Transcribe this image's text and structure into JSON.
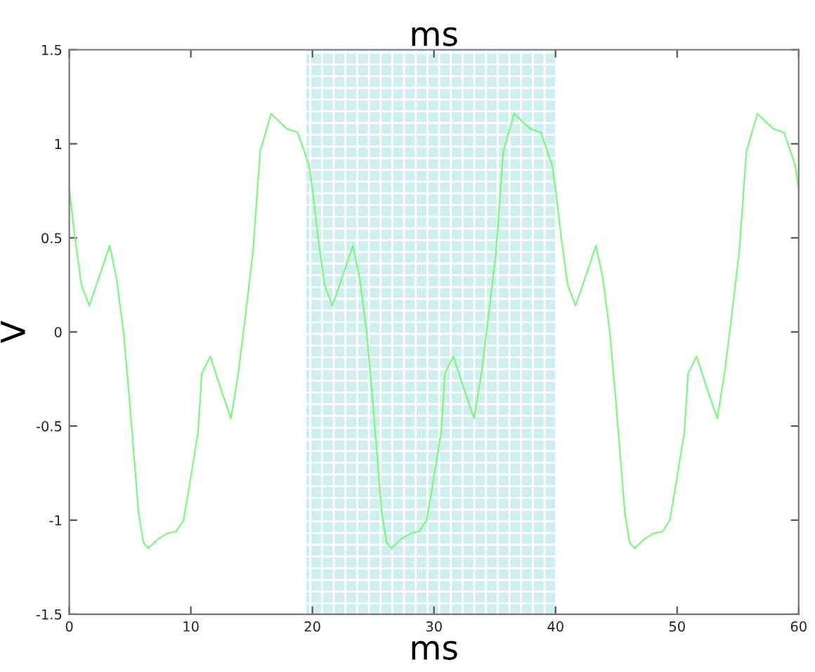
{
  "chart_data": {
    "type": "line",
    "title": "ms",
    "xlabel": "ms",
    "ylabel": "V",
    "x": [
      0,
      0.45,
      1.0,
      1.65,
      2.5,
      3.33,
      3.9,
      4.46,
      4.9,
      5.7,
      6.1,
      6.5,
      7.3,
      8.1,
      8.8,
      9.4,
      10.0,
      10.6,
      10.9,
      11.6,
      12.4,
      13.3,
      13.9,
      14.4,
      15.1,
      15.7,
      16.6,
      17.9,
      18.8,
      19.7,
      20,
      20.45,
      21.0,
      21.65,
      22.5,
      23.33,
      23.9,
      24.46,
      24.9,
      25.7,
      26.1,
      26.5,
      27.3,
      28.1,
      28.8,
      29.4,
      30.0,
      30.6,
      30.9,
      31.6,
      32.4,
      33.3,
      33.9,
      34.4,
      35.1,
      35.7,
      36.6,
      37.9,
      38.8,
      39.7,
      40,
      40.45,
      41.0,
      41.65,
      42.5,
      43.33,
      43.9,
      44.46,
      44.9,
      45.7,
      46.1,
      46.5,
      47.3,
      48.1,
      48.8,
      49.4,
      50.0,
      50.6,
      50.9,
      51.6,
      52.4,
      53.3,
      53.9,
      54.4,
      55.1,
      55.7,
      56.6,
      57.9,
      58.8,
      59.7,
      60
    ],
    "series": [
      {
        "color": "#7cf77c",
        "values": [
          0.76,
          0.51,
          0.25,
          0.14,
          0.3,
          0.46,
          0.28,
          0.0,
          -0.32,
          -0.96,
          -1.12,
          -1.15,
          -1.1,
          -1.07,
          -1.06,
          -1.0,
          -0.77,
          -0.53,
          -0.22,
          -0.13,
          -0.29,
          -0.46,
          -0.22,
          0.04,
          0.42,
          0.96,
          1.16,
          1.08,
          1.06,
          0.89,
          0.76,
          0.51,
          0.25,
          0.14,
          0.3,
          0.46,
          0.28,
          0.0,
          -0.32,
          -0.96,
          -1.12,
          -1.15,
          -1.1,
          -1.07,
          -1.06,
          -1.0,
          -0.77,
          -0.53,
          -0.22,
          -0.13,
          -0.29,
          -0.46,
          -0.22,
          0.04,
          0.42,
          0.96,
          1.16,
          1.08,
          1.06,
          0.89,
          0.76,
          0.51,
          0.25,
          0.14,
          0.3,
          0.46,
          0.28,
          0.0,
          -0.32,
          -0.96,
          -1.12,
          -1.15,
          -1.1,
          -1.07,
          -1.06,
          -1.0,
          -0.77,
          -0.53,
          -0.22,
          -0.13,
          -0.29,
          -0.46,
          -0.22,
          0.04,
          0.42,
          0.96,
          1.16,
          1.08,
          1.06,
          0.89,
          0.76
        ]
      }
    ],
    "xlim": [
      0,
      60
    ],
    "xticks": [
      0,
      10,
      20,
      30,
      40,
      50,
      60
    ],
    "ylim": [
      -1.5,
      1.5
    ],
    "yticks": [
      -1.5,
      -1,
      -0.5,
      0,
      0.5,
      1,
      1.5
    ],
    "bands": [
      {
        "axis": "x",
        "from": 19.5,
        "to": 40,
        "color": "#cfeef0"
      }
    ],
    "grid": false,
    "legend": false,
    "marker": "none",
    "line_style": "solid"
  }
}
